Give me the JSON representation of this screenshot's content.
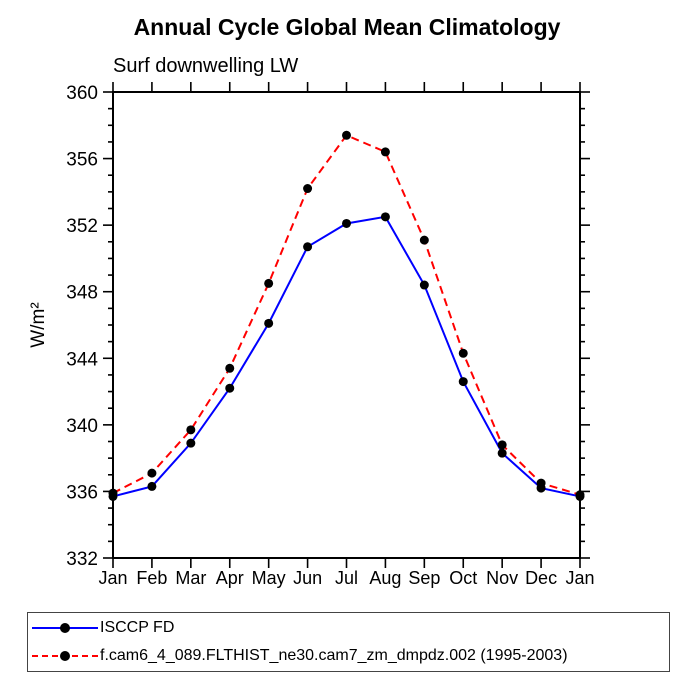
{
  "chart_data": {
    "type": "line",
    "title": "Annual Cycle Global Mean Climatology",
    "subtitle": "Surf downwelling LW",
    "ylabel": "W/m²",
    "xlabel": "",
    "ylim": [
      332,
      360
    ],
    "y_major_ticks": [
      332,
      336,
      340,
      344,
      348,
      352,
      356,
      360
    ],
    "y_minor_step": 1,
    "grid": false,
    "legend_position": "bottom",
    "frame": "box-with-outward-ticks",
    "categories": [
      "Jan",
      "Feb",
      "Mar",
      "Apr",
      "May",
      "Jun",
      "Jul",
      "Aug",
      "Sep",
      "Oct",
      "Nov",
      "Dec",
      "Jan"
    ],
    "series": [
      {
        "name": "ISCCP FD",
        "color": "#0000ff",
        "line_style": "solid",
        "marker": "filled-circle",
        "marker_color": "#000000",
        "values": [
          335.7,
          336.3,
          338.9,
          342.2,
          346.1,
          350.7,
          352.1,
          352.5,
          348.4,
          342.6,
          338.3,
          336.2,
          335.7
        ]
      },
      {
        "name": "f.cam6_4_089.FLTHIST_ne30.cam7_zm_dmpdz.002 (1995-2003)",
        "color": "#ff0000",
        "line_style": "dashed",
        "marker": "filled-circle",
        "marker_color": "#000000",
        "values": [
          335.9,
          337.1,
          339.7,
          343.4,
          348.5,
          354.2,
          357.4,
          356.4,
          351.1,
          344.3,
          338.8,
          336.5,
          335.8
        ]
      }
    ]
  }
}
